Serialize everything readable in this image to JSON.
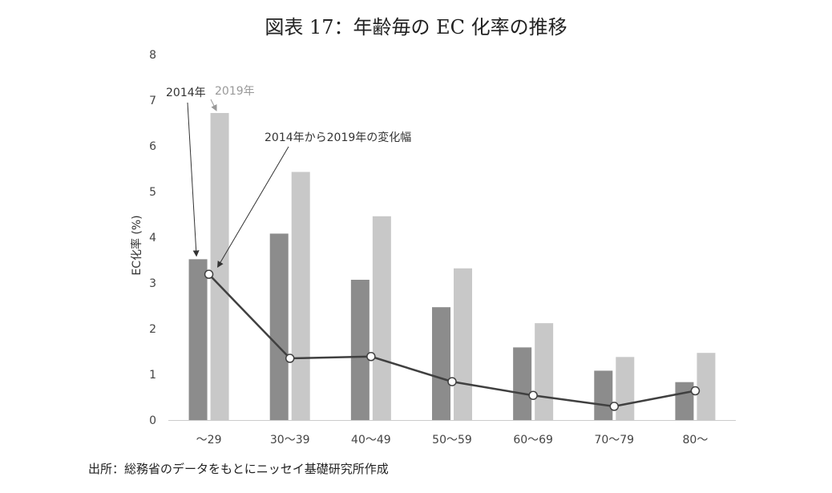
{
  "title": "図表 17：年齢毎の EC 化率の推移",
  "source": "出所：総務省のデータをもとにニッセイ基礎研究所作成",
  "colors": {
    "series_2014": "#8c8c8c",
    "series_2019": "#c8c8c8",
    "change_line": "#404040",
    "annotation_2014": "#333333",
    "annotation_2019": "#999999"
  },
  "chart_data": {
    "type": "bar",
    "categories": [
      "〜29",
      "30〜39",
      "40〜49",
      "50〜59",
      "60〜69",
      "70〜79",
      "80〜"
    ],
    "series": [
      {
        "name": "2014年",
        "values": [
          3.52,
          4.08,
          3.07,
          2.47,
          1.59,
          1.08,
          0.83
        ]
      },
      {
        "name": "2019年",
        "values": [
          6.72,
          5.43,
          4.46,
          3.32,
          2.12,
          1.38,
          1.47
        ]
      }
    ],
    "line_series": {
      "name": "2014年から2019年の変化幅",
      "values": [
        3.19,
        1.35,
        1.39,
        0.84,
        0.54,
        0.3,
        0.64
      ]
    },
    "ylabel": "EC化率 (%)",
    "xlabel": "",
    "ylim": [
      0,
      8
    ],
    "yticks": [
      0,
      1,
      2,
      3,
      4,
      5,
      6,
      7,
      8
    ],
    "grid": false,
    "annotations": [
      "2014年",
      "2019年",
      "2014年から2019年の変化幅"
    ]
  }
}
